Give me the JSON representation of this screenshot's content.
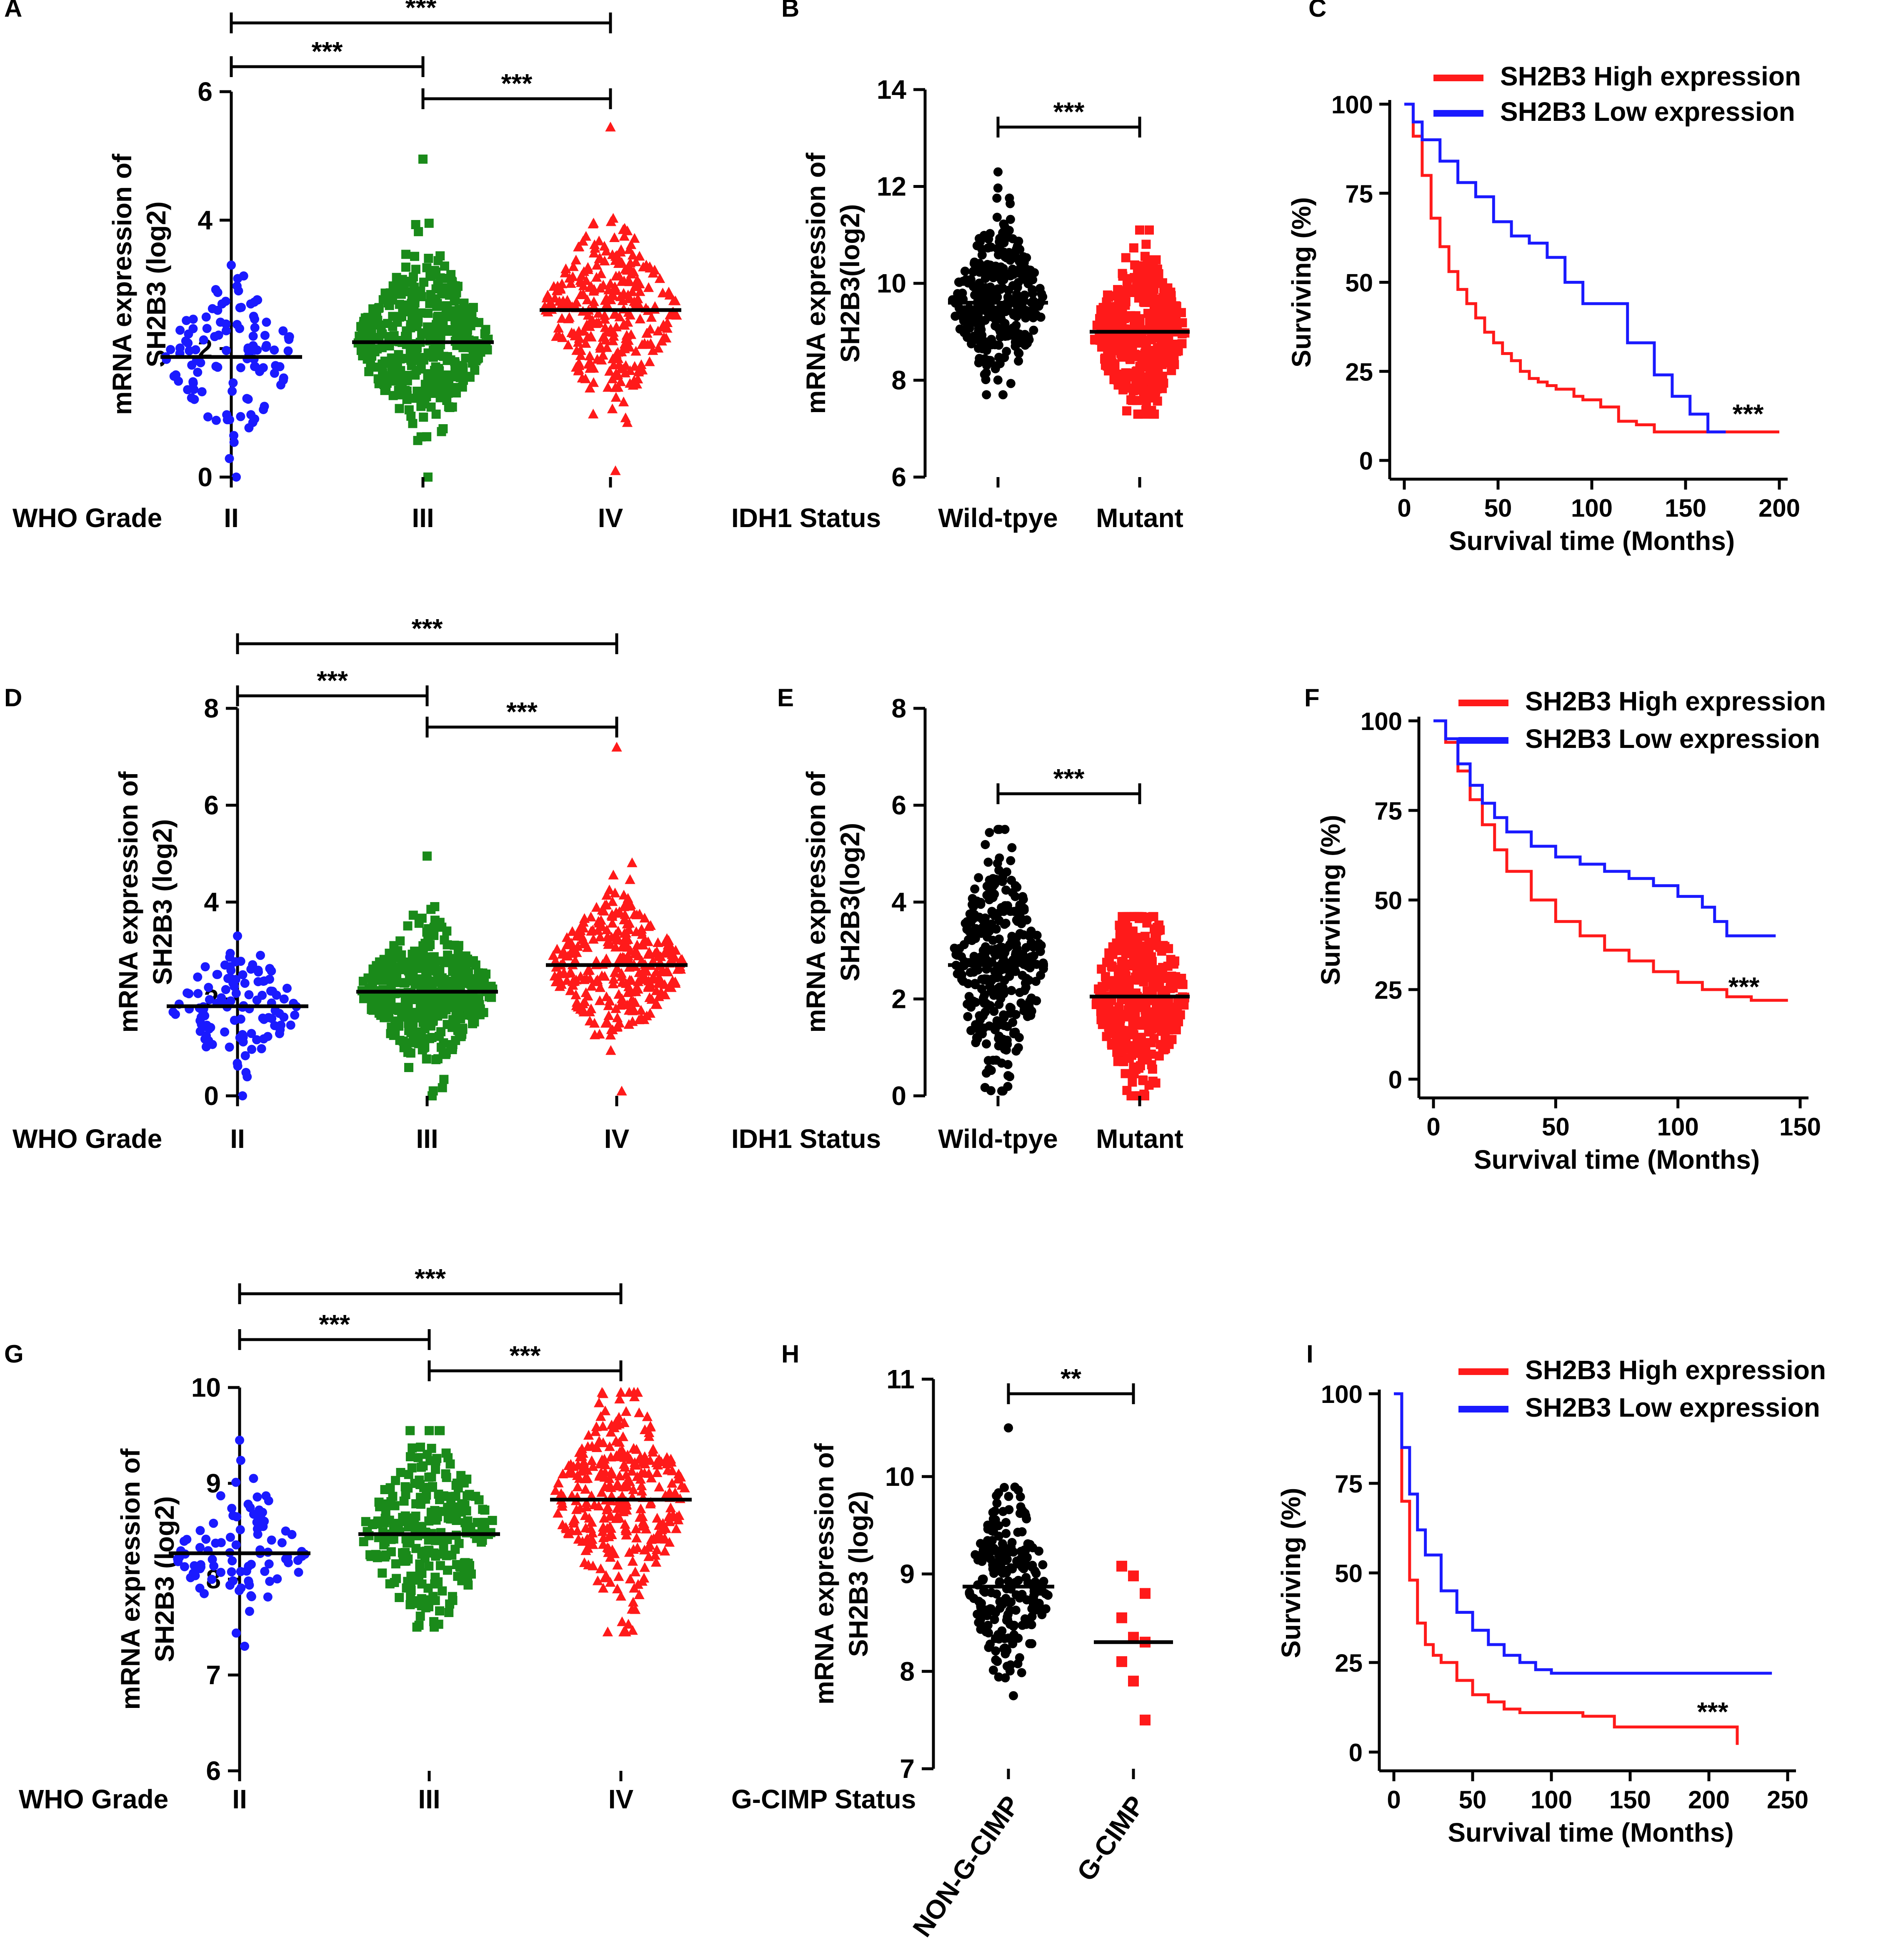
{
  "figure": {
    "colors": {
      "blue": "#1a1aff",
      "green": "#1a8a1a",
      "red": "#ff1a1a",
      "black": "#000000"
    }
  },
  "chart_data": [
    {
      "id": "A",
      "type": "scatter",
      "panel_label": "A",
      "ylabel": "mRNA expression of SH2B3 (log2)",
      "ylabel_lines": [
        "mRNA expression of",
        "SH2B3 (log2)"
      ],
      "ylim": [
        0,
        6
      ],
      "yticks": [
        "0",
        "2",
        "4",
        "6"
      ],
      "group_axis_label": "WHO Grade",
      "groups": [
        {
          "name": "II",
          "marker": "circle",
          "color": "#1a1aff",
          "median": 1.87,
          "q1": 1.2,
          "q3": 2.3,
          "min": 0.0,
          "max": 3.3,
          "n": 110,
          "spread": 0.55
        },
        {
          "name": "III",
          "marker": "square",
          "color": "#1a8a1a",
          "median": 2.1,
          "q1": 1.2,
          "q3": 2.9,
          "min": 0.0,
          "max": 4.95,
          "n": 420,
          "spread": 0.62
        },
        {
          "name": "IV",
          "marker": "triangle",
          "color": "#ff1a1a",
          "median": 2.6,
          "q1": 1.6,
          "q3": 3.5,
          "min": 0.1,
          "max": 5.45,
          "n": 300,
          "spread": 0.65
        }
      ],
      "comparisons": [
        {
          "from": 0,
          "to": 2,
          "label": "***"
        },
        {
          "from": 0,
          "to": 1,
          "label": "***"
        },
        {
          "from": 1,
          "to": 2,
          "label": "***"
        }
      ]
    },
    {
      "id": "B",
      "type": "scatter",
      "panel_label": "B",
      "ylabel": "mRNA expression of SH2B3(log2)",
      "ylabel_lines": [
        "mRNA expression of",
        "SH2B3(log2)"
      ],
      "ylim": [
        6,
        14
      ],
      "yticks": [
        "6",
        "8",
        "10",
        "12",
        "14"
      ],
      "group_axis_label": "IDH1 Status",
      "groups": [
        {
          "name": "Wild-tpye",
          "marker": "circle",
          "color": "#000000",
          "median": 9.6,
          "q1": 9.0,
          "q3": 10.2,
          "min": 7.7,
          "max": 12.3,
          "n": 300,
          "spread": 0.8
        },
        {
          "name": "Mutant",
          "marker": "square",
          "color": "#ff1a1a",
          "median": 9.0,
          "q1": 8.6,
          "q3": 9.5,
          "min": 7.3,
          "max": 11.1,
          "n": 420,
          "spread": 0.8
        }
      ],
      "comparisons": [
        {
          "from": 0,
          "to": 1,
          "label": "***"
        }
      ]
    },
    {
      "id": "C",
      "type": "line",
      "panel_label": "C",
      "xlabel": "Survival time (Months)",
      "ylabel": "Surviving (%)",
      "xlim": [
        0,
        210
      ],
      "ylim": [
        0,
        100
      ],
      "xticks": [
        "0",
        "50",
        "100",
        "150",
        "200"
      ],
      "yticks": [
        "0",
        "25",
        "50",
        "75",
        "100"
      ],
      "annotation": "***",
      "legend": [
        "SH2B3 High expression",
        "SH2B3 Low expression"
      ],
      "series": [
        {
          "name": "SH2B3 High expression",
          "color": "#ff1a1a",
          "x": [
            0,
            5,
            10,
            15,
            20,
            25,
            30,
            35,
            40,
            45,
            50,
            55,
            60,
            65,
            70,
            75,
            80,
            85,
            90,
            95,
            100,
            110,
            120,
            130,
            140,
            160,
            180,
            210
          ],
          "y": [
            100,
            91,
            80,
            68,
            60,
            53,
            48,
            44,
            40,
            36,
            33,
            30,
            28,
            25,
            23,
            22,
            21,
            20,
            20,
            18,
            17,
            15,
            11,
            10,
            8,
            8,
            8,
            8
          ]
        },
        {
          "name": "SH2B3 Low expression",
          "color": "#1a1aff",
          "x": [
            0,
            5,
            10,
            20,
            30,
            40,
            50,
            60,
            70,
            80,
            90,
            100,
            110,
            120,
            125,
            130,
            140,
            150,
            160,
            170,
            180
          ],
          "y": [
            100,
            95,
            90,
            84,
            78,
            74,
            67,
            63,
            61,
            57,
            50,
            44,
            44,
            44,
            33,
            33,
            24,
            18,
            13,
            8,
            8
          ]
        }
      ]
    },
    {
      "id": "D",
      "type": "scatter",
      "panel_label": "D",
      "ylabel": "mRNA expression of SH2B3 (log2)",
      "ylabel_lines": [
        "mRNA expression of",
        "SH2B3 (log2)"
      ],
      "ylim": [
        0,
        8
      ],
      "yticks": [
        "0",
        "2",
        "4",
        "6",
        "8"
      ],
      "group_axis_label": "WHO Grade",
      "groups": [
        {
          "name": "II",
          "marker": "circle",
          "color": "#1a1aff",
          "median": 1.85,
          "q1": 1.3,
          "q3": 2.3,
          "min": 0.0,
          "max": 3.3,
          "n": 110,
          "spread": 0.55
        },
        {
          "name": "III",
          "marker": "square",
          "color": "#1a8a1a",
          "median": 2.15,
          "q1": 1.3,
          "q3": 2.9,
          "min": 0.0,
          "max": 4.95,
          "n": 420,
          "spread": 0.65
        },
        {
          "name": "IV",
          "marker": "triangle",
          "color": "#ff1a1a",
          "median": 2.7,
          "q1": 1.7,
          "q3": 3.5,
          "min": 0.1,
          "max": 7.2,
          "n": 300,
          "spread": 0.7
        }
      ],
      "comparisons": [
        {
          "from": 0,
          "to": 2,
          "label": "***"
        },
        {
          "from": 0,
          "to": 1,
          "label": "***"
        },
        {
          "from": 1,
          "to": 2,
          "label": "***"
        }
      ]
    },
    {
      "id": "E",
      "type": "scatter",
      "panel_label": "E",
      "ylabel": "mRNA expression of SH2B3(log2)",
      "ylabel_lines": [
        "mRNA expression of",
        "SH2B3(log2)"
      ],
      "ylim": [
        0,
        8
      ],
      "yticks": [
        "0",
        "2",
        "4",
        "6",
        "8"
      ],
      "group_axis_label": "IDH1 Status",
      "groups": [
        {
          "name": "Wild-tpye",
          "marker": "circle",
          "color": "#000000",
          "median": 2.7,
          "q1": 1.8,
          "q3": 3.6,
          "min": 0.1,
          "max": 5.5,
          "n": 320,
          "spread": 1.1
        },
        {
          "name": "Mutant",
          "marker": "square",
          "color": "#ff1a1a",
          "median": 2.05,
          "q1": 1.3,
          "q3": 2.8,
          "min": 0.0,
          "max": 3.7,
          "n": 420,
          "spread": 0.9
        }
      ],
      "comparisons": [
        {
          "from": 0,
          "to": 1,
          "label": "***"
        }
      ]
    },
    {
      "id": "F",
      "type": "line",
      "panel_label": "F",
      "xlabel": "Survival time (Months)",
      "ylabel": "Surviving (%)",
      "xlim": [
        0,
        150
      ],
      "ylim": [
        0,
        100
      ],
      "xticks": [
        "0",
        "50",
        "100",
        "150"
      ],
      "yticks": [
        "0",
        "25",
        "50",
        "75",
        "100"
      ],
      "annotation": "***",
      "legend": [
        "SH2B3 High expression",
        "SH2B3 Low expression"
      ],
      "series": [
        {
          "name": "SH2B3 High expression",
          "color": "#ff1a1a",
          "x": [
            0,
            5,
            10,
            15,
            20,
            25,
            30,
            40,
            50,
            60,
            70,
            80,
            90,
            100,
            110,
            120,
            130,
            140,
            145
          ],
          "y": [
            100,
            94,
            86,
            78,
            71,
            64,
            58,
            50,
            44,
            40,
            36,
            33,
            30,
            27,
            25,
            23,
            22,
            22,
            22
          ]
        },
        {
          "name": "SH2B3 Low expression",
          "color": "#1a1aff",
          "x": [
            0,
            5,
            10,
            15,
            20,
            25,
            30,
            40,
            50,
            60,
            70,
            80,
            90,
            100,
            110,
            115,
            120,
            130,
            140
          ],
          "y": [
            100,
            95,
            88,
            82,
            77,
            73,
            69,
            65,
            62,
            60,
            58,
            56,
            54,
            51,
            48,
            44,
            40,
            40,
            40
          ]
        }
      ]
    },
    {
      "id": "G",
      "type": "scatter",
      "panel_label": "G",
      "ylabel": "mRNA expression of SH2B3 (log2)",
      "ylabel_lines": [
        "mRNA expression of",
        "SH2B3 (log2)"
      ],
      "ylim": [
        6,
        10
      ],
      "yticks": [
        "6",
        "7",
        "8",
        "9",
        "10"
      ],
      "group_axis_label": "WHO Grade",
      "groups": [
        {
          "name": "II",
          "marker": "circle",
          "color": "#1a1aff",
          "median": 8.27,
          "q1": 8.0,
          "q3": 8.45,
          "min": 7.3,
          "max": 9.45,
          "n": 90,
          "spread": 0.35
        },
        {
          "name": "III",
          "marker": "square",
          "color": "#1a8a1a",
          "median": 8.47,
          "q1": 8.1,
          "q3": 8.75,
          "min": 7.5,
          "max": 9.55,
          "n": 260,
          "spread": 0.45
        },
        {
          "name": "IV",
          "marker": "triangle",
          "color": "#ff1a1a",
          "median": 8.83,
          "q1": 8.4,
          "q3": 9.25,
          "min": 7.45,
          "max": 9.95,
          "n": 320,
          "spread": 0.5
        }
      ],
      "comparisons": [
        {
          "from": 0,
          "to": 2,
          "label": "***"
        },
        {
          "from": 0,
          "to": 1,
          "label": "***"
        },
        {
          "from": 1,
          "to": 2,
          "label": "***"
        }
      ]
    },
    {
      "id": "H",
      "type": "scatter",
      "panel_label": "H",
      "ylabel": "mRNA expression of SH2B3 (log2)",
      "ylabel_lines": [
        "mRNA expression of",
        "SH2B3 (log2)"
      ],
      "ylim": [
        7,
        11
      ],
      "yticks": [
        "7",
        "8",
        "9",
        "10",
        "11"
      ],
      "group_axis_label": "G-CIMP Status",
      "rotate_categories": true,
      "groups": [
        {
          "name": "NON-G-CIMP",
          "marker": "circle",
          "color": "#000000",
          "median": 8.87,
          "q1": 8.5,
          "q3": 9.2,
          "min": 7.75,
          "max": 10.5,
          "n": 220,
          "spread": 0.45,
          "dense": false
        },
        {
          "name": "G-CIMP",
          "marker": "square",
          "color": "#ff1a1a",
          "median": 8.3,
          "n": 9,
          "dense": false,
          "points": [
            9.08,
            8.98,
            8.8,
            8.55,
            8.35,
            8.3,
            8.1,
            7.9,
            7.5
          ]
        }
      ],
      "comparisons": [
        {
          "from": 0,
          "to": 1,
          "label": "**"
        }
      ]
    },
    {
      "id": "I",
      "type": "line",
      "panel_label": "I",
      "xlabel": "Survival time (Months)",
      "ylabel": "Surviving (%)",
      "xlim": [
        0,
        250
      ],
      "ylim": [
        0,
        100
      ],
      "xticks": [
        "0",
        "50",
        "100",
        "150",
        "200",
        "250"
      ],
      "yticks": [
        "0",
        "25",
        "50",
        "75",
        "100"
      ],
      "annotation": "***",
      "legend": [
        "SH2B3 High expression",
        "SH2B3 Low expression"
      ],
      "series": [
        {
          "name": "SH2B3 High expression",
          "color": "#ff1a1a",
          "x": [
            0,
            5,
            10,
            15,
            20,
            25,
            30,
            40,
            50,
            60,
            70,
            80,
            100,
            120,
            140,
            160,
            180,
            200,
            215,
            218
          ],
          "y": [
            100,
            70,
            48,
            36,
            30,
            27,
            25,
            20,
            16,
            14,
            12,
            11,
            11,
            10,
            7,
            7,
            7,
            7,
            7,
            2
          ]
        },
        {
          "name": "SH2B3 Low expression",
          "color": "#1a1aff",
          "x": [
            0,
            5,
            10,
            15,
            20,
            30,
            40,
            50,
            60,
            70,
            80,
            90,
            100,
            120,
            150,
            200,
            240
          ],
          "y": [
            100,
            85,
            72,
            62,
            55,
            45,
            39,
            34,
            30,
            27,
            25,
            23,
            22,
            22,
            22,
            22,
            22
          ]
        }
      ]
    }
  ]
}
